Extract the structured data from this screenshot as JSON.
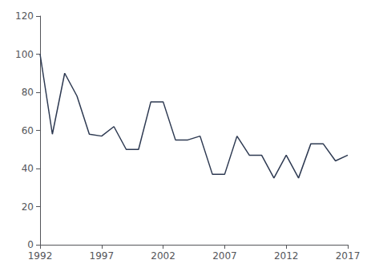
{
  "chart_data": {
    "type": "line",
    "x": [
      1992,
      1993,
      1994,
      1995,
      1996,
      1997,
      1998,
      1999,
      2000,
      2001,
      2002,
      2003,
      2004,
      2005,
      2006,
      2007,
      2008,
      2009,
      2010,
      2011,
      2012,
      2013,
      2014,
      2015,
      2016,
      2017
    ],
    "values": [
      100,
      58,
      90,
      78,
      58,
      57,
      62,
      50,
      50,
      75,
      75,
      55,
      55,
      57,
      37,
      37,
      57,
      47,
      47,
      35,
      47,
      35,
      53,
      53,
      44,
      47
    ],
    "color": "#2E3A52",
    "xlim": [
      1992,
      2017
    ],
    "ylim": [
      0,
      120
    ],
    "xticks": [
      1992,
      1997,
      2002,
      2007,
      2012,
      2017
    ],
    "yticks": [
      0,
      20,
      40,
      60,
      80,
      100,
      120
    ],
    "grid": false
  }
}
